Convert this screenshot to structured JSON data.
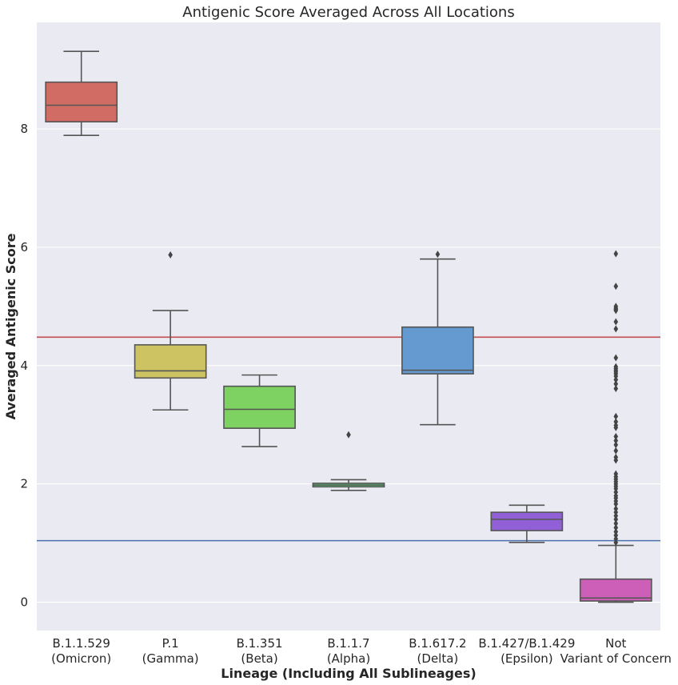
{
  "chart_data": {
    "type": "box",
    "title": "Antigenic Score Averaged Across All Locations",
    "xlabel": "Lineage (Including All Sublineages)",
    "ylabel": "Averaged Antigenic Score",
    "ylim": [
      -0.48,
      9.8
    ],
    "yticks": [
      0,
      2,
      4,
      6,
      8
    ],
    "grid": true,
    "reference_lines": [
      {
        "y": 4.48,
        "color": "#c44e52"
      },
      {
        "y": 1.04,
        "color": "#4c72b0"
      }
    ],
    "categories": [
      {
        "line1": "B.1.1.529",
        "line2": "(Omicron)"
      },
      {
        "line1": "P.1",
        "line2": "(Gamma)"
      },
      {
        "line1": "B.1.351",
        "line2": "(Beta)"
      },
      {
        "line1": "B.1.1.7",
        "line2": "(Alpha)"
      },
      {
        "line1": "B.1.617.2",
        "line2": "(Delta)"
      },
      {
        "line1": "B.1.427/B.1.429",
        "line2": "(Epsilon)"
      },
      {
        "line1": "Not",
        "line2": "Variant of Concern"
      }
    ],
    "boxes": [
      {
        "whislo": 7.89,
        "q1": 8.12,
        "med": 8.4,
        "q3": 8.79,
        "whishi": 9.31,
        "fliers": [],
        "color": "#d16c64"
      },
      {
        "whislo": 3.25,
        "q1": 3.79,
        "med": 3.91,
        "q3": 4.35,
        "whishi": 4.93,
        "fliers": [
          5.87
        ],
        "color": "#cdc363"
      },
      {
        "whislo": 2.63,
        "q1": 2.94,
        "med": 3.26,
        "q3": 3.65,
        "whishi": 3.84,
        "fliers": [],
        "color": "#7ed261"
      },
      {
        "whislo": 1.89,
        "q1": 1.95,
        "med": 1.98,
        "q3": 2.01,
        "whishi": 2.07,
        "fliers": [
          2.83
        ],
        "color": "#5fd07d"
      },
      {
        "whislo": 3.0,
        "q1": 3.86,
        "med": 3.92,
        "q3": 4.65,
        "whishi": 5.8,
        "fliers": [
          5.88
        ],
        "color": "#659ad1"
      },
      {
        "whislo": 1.01,
        "q1": 1.21,
        "med": 1.4,
        "q3": 1.52,
        "whishi": 1.64,
        "fliers": [],
        "color": "#9160d7"
      },
      {
        "whislo": 0.0,
        "q1": 0.02,
        "med": 0.07,
        "q3": 0.39,
        "whishi": 0.96,
        "color": "#cd5fb9",
        "fliers": [
          5.89,
          5.34,
          5.0,
          4.97,
          4.95,
          4.93,
          4.74,
          4.62,
          4.13,
          3.98,
          3.95,
          3.92,
          3.89,
          3.86,
          3.82,
          3.76,
          3.69,
          3.61,
          3.14,
          3.05,
          2.99,
          2.95,
          2.8,
          2.73,
          2.66,
          2.56,
          2.45,
          2.4,
          2.17,
          2.12,
          2.08,
          2.04,
          2.0,
          1.96,
          1.92,
          1.86,
          1.8,
          1.76,
          1.71,
          1.66,
          1.58,
          1.52,
          1.46,
          1.4,
          1.33,
          1.26,
          1.19,
          1.13,
          1.07,
          1.01
        ]
      }
    ]
  }
}
